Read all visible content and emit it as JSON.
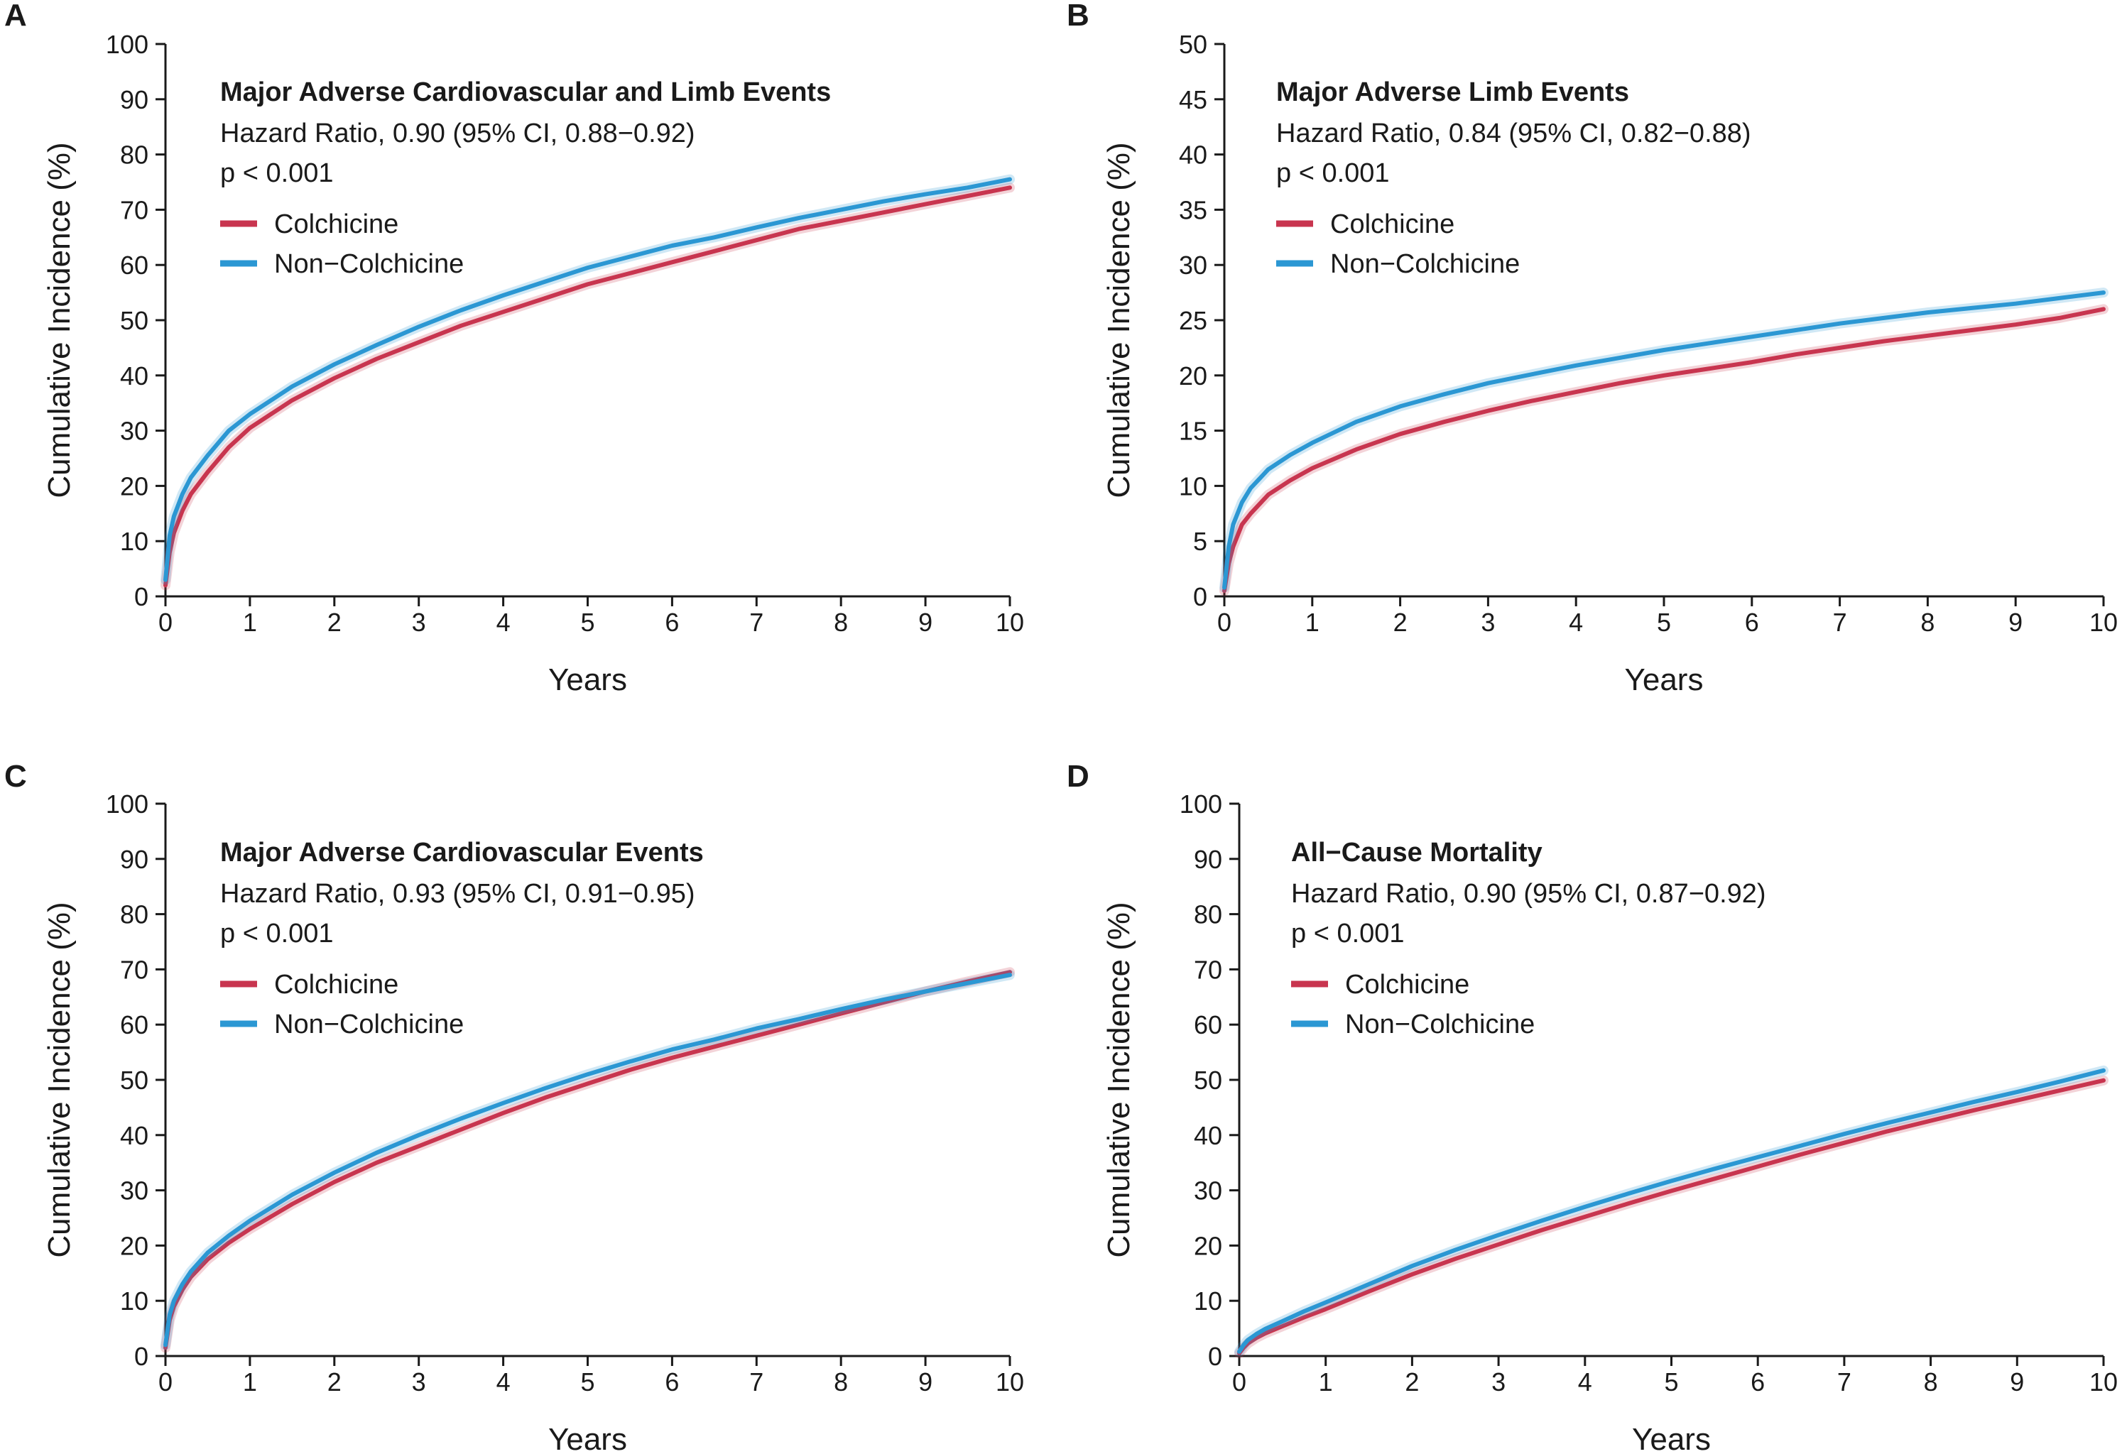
{
  "colors": {
    "colchicine": "#c8354f",
    "non_colchicine": "#2b97d3",
    "axis": "#1a1a1a"
  },
  "chart_data": [
    {
      "type": "line",
      "panel": "A",
      "title": "Major Adverse Cardiovascular and Limb Events",
      "hazard_ratio": "Hazard Ratio, 0.90 (95% CI, 0.88−0.92)",
      "p_value": "p < 0.001",
      "xlabel": "Years",
      "ylabel": "Cumulative Incidence (%)",
      "xlim": [
        0,
        10
      ],
      "ylim": [
        0,
        100
      ],
      "x_ticks": [
        0,
        1,
        2,
        3,
        4,
        5,
        6,
        7,
        8,
        9,
        10
      ],
      "y_ticks": [
        0,
        10,
        20,
        30,
        40,
        50,
        60,
        70,
        80,
        90,
        100
      ],
      "legend": {
        "position": "top-left",
        "entries": [
          "Colchicine",
          "Non−Colchicine"
        ]
      },
      "x": [
        0,
        0.05,
        0.1,
        0.2,
        0.3,
        0.5,
        0.75,
        1,
        1.5,
        2,
        2.5,
        3,
        3.5,
        4,
        4.5,
        5,
        5.5,
        6,
        6.5,
        7,
        7.5,
        8,
        8.5,
        9,
        9.5,
        10
      ],
      "series": [
        {
          "name": "Colchicine",
          "color_key": "colchicine",
          "values": [
            2,
            8,
            11.5,
            15.5,
            18.5,
            22.5,
            27,
            30.5,
            35.5,
            39.5,
            43,
            46,
            49,
            51.5,
            54,
            56.5,
            58.5,
            60.5,
            62.5,
            64.5,
            66.5,
            68,
            69.5,
            71,
            72.5,
            74
          ]
        },
        {
          "name": "Non−Colchicine",
          "color_key": "non_colchicine",
          "values": [
            3,
            11,
            14.5,
            18.5,
            21.5,
            25.5,
            30,
            33,
            38,
            42,
            45.5,
            48.8,
            51.8,
            54.5,
            57,
            59.5,
            61.5,
            63.5,
            65,
            66.8,
            68.5,
            70,
            71.5,
            72.8,
            74,
            75.5
          ]
        }
      ]
    },
    {
      "type": "line",
      "panel": "B",
      "title": "Major Adverse Limb Events",
      "hazard_ratio": "Hazard Ratio, 0.84 (95% CI, 0.82−0.88)",
      "p_value": "p < 0.001",
      "xlabel": "Years",
      "ylabel": "Cumulative Incidence (%)",
      "xlim": [
        0,
        10
      ],
      "ylim": [
        0,
        50
      ],
      "x_ticks": [
        0,
        1,
        2,
        3,
        4,
        5,
        6,
        7,
        8,
        9,
        10
      ],
      "y_ticks": [
        0,
        5,
        10,
        15,
        20,
        25,
        30,
        35,
        40,
        45,
        50
      ],
      "legend": {
        "position": "top-left",
        "entries": [
          "Colchicine",
          "Non−Colchicine"
        ]
      },
      "x": [
        0,
        0.05,
        0.1,
        0.2,
        0.3,
        0.5,
        0.75,
        1,
        1.5,
        2,
        2.5,
        3,
        3.5,
        4,
        4.5,
        5,
        5.5,
        6,
        6.5,
        7,
        7.5,
        8,
        8.5,
        9,
        9.5,
        10
      ],
      "series": [
        {
          "name": "Colchicine",
          "color_key": "colchicine",
          "values": [
            0.5,
            3,
            4.5,
            6.5,
            7.5,
            9.2,
            10.5,
            11.6,
            13.3,
            14.7,
            15.8,
            16.8,
            17.7,
            18.5,
            19.3,
            20,
            20.6,
            21.2,
            21.9,
            22.5,
            23.1,
            23.6,
            24.1,
            24.6,
            25.2,
            26
          ]
        },
        {
          "name": "Non−Colchicine",
          "color_key": "non_colchicine",
          "values": [
            0.8,
            4.5,
            6.5,
            8.5,
            9.8,
            11.5,
            12.8,
            13.9,
            15.8,
            17.2,
            18.3,
            19.3,
            20.1,
            20.9,
            21.6,
            22.3,
            22.9,
            23.5,
            24.1,
            24.7,
            25.2,
            25.7,
            26.1,
            26.5,
            27,
            27.5
          ]
        }
      ]
    },
    {
      "type": "line",
      "panel": "C",
      "title": "Major Adverse Cardiovascular Events",
      "hazard_ratio": "Hazard Ratio, 0.93 (95% CI, 0.91−0.95)",
      "p_value": "p < 0.001",
      "xlabel": "Years",
      "ylabel": "Cumulative Incidence (%)",
      "xlim": [
        0,
        10
      ],
      "ylim": [
        0,
        100
      ],
      "x_ticks": [
        0,
        1,
        2,
        3,
        4,
        5,
        6,
        7,
        8,
        9,
        10
      ],
      "y_ticks": [
        0,
        10,
        20,
        30,
        40,
        50,
        60,
        70,
        80,
        90,
        100
      ],
      "legend": {
        "position": "top-left",
        "entries": [
          "Colchicine",
          "Non−Colchicine"
        ]
      },
      "x": [
        0,
        0.05,
        0.1,
        0.2,
        0.3,
        0.5,
        0.75,
        1,
        1.5,
        2,
        2.5,
        3,
        3.5,
        4,
        4.5,
        5,
        5.5,
        6,
        6.5,
        7,
        7.5,
        8,
        8.5,
        9,
        9.5,
        10
      ],
      "series": [
        {
          "name": "Colchicine",
          "color_key": "colchicine",
          "values": [
            1.5,
            6.5,
            9,
            12,
            14.3,
            17.5,
            20.5,
            23,
            27.5,
            31.5,
            35,
            38,
            41,
            44,
            46.8,
            49.3,
            51.8,
            54,
            56,
            58,
            60,
            62,
            64,
            66,
            67.8,
            69.5
          ]
        },
        {
          "name": "Non−Colchicine",
          "color_key": "non_colchicine",
          "values": [
            2,
            7.5,
            10,
            13,
            15.3,
            18.7,
            21.8,
            24.5,
            29.2,
            33.2,
            36.8,
            40,
            43,
            45.8,
            48.5,
            51,
            53.3,
            55.5,
            57.3,
            59.3,
            61,
            62.8,
            64.5,
            66,
            67.5,
            69
          ]
        }
      ]
    },
    {
      "type": "line",
      "panel": "D",
      "title": "All−Cause Mortality",
      "hazard_ratio": "Hazard Ratio, 0.90 (95% CI, 0.87−0.92)",
      "p_value": "p < 0.001",
      "xlabel": "Years",
      "ylabel": "Cumulative Incidence (%)",
      "xlim": [
        0,
        10
      ],
      "ylim": [
        0,
        100
      ],
      "x_ticks": [
        0,
        1,
        2,
        3,
        4,
        5,
        6,
        7,
        8,
        9,
        10
      ],
      "y_ticks": [
        0,
        10,
        20,
        30,
        40,
        50,
        60,
        70,
        80,
        90,
        100
      ],
      "legend": {
        "position": "top-left",
        "entries": [
          "Colchicine",
          "Non−Colchicine"
        ]
      },
      "x": [
        0,
        0.05,
        0.1,
        0.2,
        0.3,
        0.5,
        0.75,
        1,
        1.5,
        2,
        2.5,
        3,
        3.5,
        4,
        4.5,
        5,
        5.5,
        6,
        6.5,
        7,
        7.5,
        8,
        8.5,
        9,
        9.5,
        10
      ],
      "series": [
        {
          "name": "Colchicine",
          "color_key": "colchicine",
          "values": [
            0.5,
            1.5,
            2.3,
            3.3,
            4.1,
            5.4,
            7,
            8.5,
            11.7,
            14.8,
            17.6,
            20.2,
            22.8,
            25.2,
            27.6,
            29.9,
            32.1,
            34.3,
            36.5,
            38.6,
            40.7,
            42.6,
            44.5,
            46.3,
            48.1,
            49.9
          ]
        },
        {
          "name": "Non−Colchicine",
          "color_key": "non_colchicine",
          "values": [
            0.8,
            2,
            2.9,
            4,
            4.9,
            6.3,
            8.1,
            9.7,
            13,
            16.3,
            19.2,
            21.9,
            24.5,
            27,
            29.4,
            31.7,
            33.9,
            36,
            38.1,
            40.2,
            42.2,
            44.1,
            46,
            47.8,
            49.7,
            51.7
          ]
        }
      ]
    }
  ]
}
